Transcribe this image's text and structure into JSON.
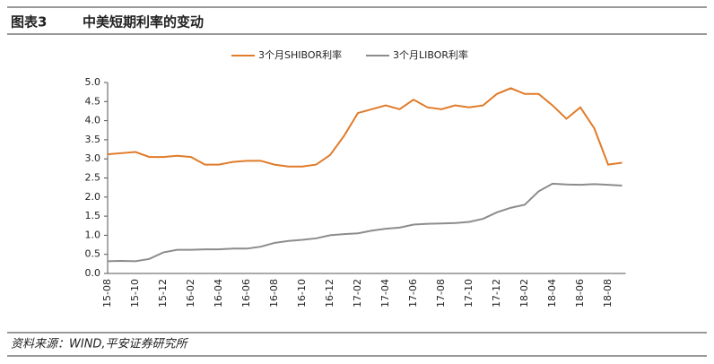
{
  "chart_data": {
    "type": "line",
    "figure_label": "图表3",
    "title": "中美短期利率的变动",
    "source": "资料来源：WIND,平安证券研究所",
    "categories": [
      "15-08",
      null,
      "15-10",
      null,
      "15-12",
      null,
      "16-02",
      null,
      "16-04",
      null,
      "16-06",
      null,
      "16-08",
      null,
      "16-10",
      null,
      "16-12",
      null,
      "17-02",
      null,
      "17-04",
      null,
      "17-06",
      null,
      "17-08",
      null,
      "17-10",
      null,
      "17-12",
      null,
      "18-02",
      null,
      "18-04",
      null,
      "18-06",
      null,
      "18-08",
      null
    ],
    "series": [
      {
        "name": "3个月SHIBOR利率",
        "color": "#e07b2a",
        "values": [
          3.12,
          3.15,
          3.18,
          3.05,
          3.05,
          3.08,
          3.05,
          2.85,
          2.85,
          2.92,
          2.95,
          2.95,
          2.85,
          2.8,
          2.8,
          2.85,
          3.1,
          3.6,
          4.2,
          4.3,
          4.4,
          4.3,
          4.55,
          4.35,
          4.3,
          4.4,
          4.35,
          4.4,
          4.7,
          4.85,
          4.7,
          4.7,
          4.4,
          4.05,
          4.35,
          3.8,
          2.85,
          2.9
        ]
      },
      {
        "name": "3个月LIBOR利率",
        "color": "#8c8c8c",
        "values": [
          0.32,
          0.33,
          0.32,
          0.38,
          0.55,
          0.62,
          0.62,
          0.63,
          0.63,
          0.65,
          0.65,
          0.7,
          0.8,
          0.85,
          0.88,
          0.92,
          1.0,
          1.03,
          1.05,
          1.12,
          1.17,
          1.2,
          1.28,
          1.3,
          1.31,
          1.32,
          1.35,
          1.43,
          1.6,
          1.72,
          1.8,
          2.15,
          2.35,
          2.33,
          2.32,
          2.34,
          2.32,
          2.3
        ]
      }
    ],
    "ylim": [
      0,
      5
    ],
    "yticks": [
      {
        "value": 0,
        "label": "0.0"
      },
      {
        "value": 0.5,
        "label": "0.5"
      },
      {
        "value": 1,
        "label": "1.0"
      },
      {
        "value": 1.5,
        "label": "1.5"
      },
      {
        "value": 2,
        "label": "2.0"
      },
      {
        "value": 2.5,
        "label": "2.5"
      },
      {
        "value": 3,
        "label": "3.0"
      },
      {
        "value": 3.5,
        "label": "3.5"
      },
      {
        "value": 4,
        "label": "4.0"
      },
      {
        "value": 4.5,
        "label": "4.5"
      },
      {
        "value": 5,
        "label": "5.0"
      }
    ],
    "grid": false
  }
}
